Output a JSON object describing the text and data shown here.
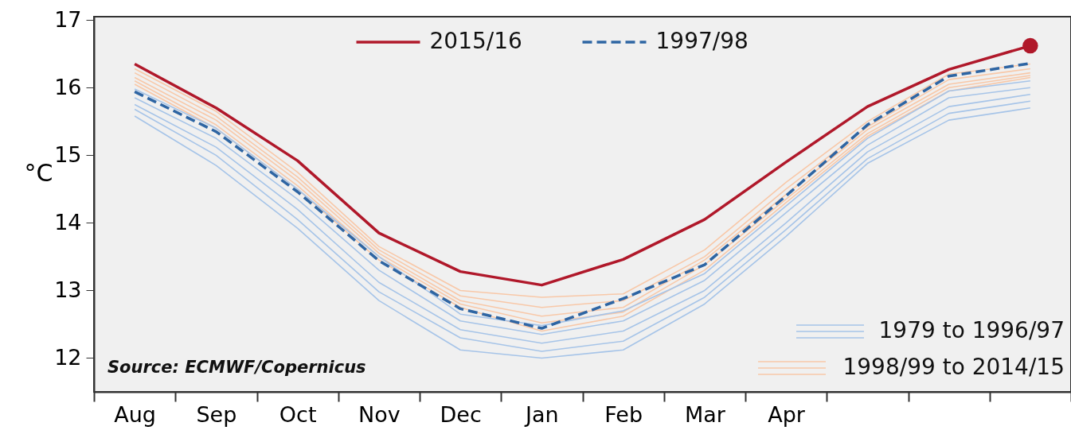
{
  "chart_data": {
    "type": "line",
    "ylabel": "°C",
    "categories": [
      "Aug",
      "Sep",
      "Oct",
      "Nov",
      "Dec",
      "Jan",
      "Feb",
      "Mar",
      "Apr",
      null,
      null,
      null
    ],
    "ylim": [
      11.5,
      17.05
    ],
    "yticks": [
      12,
      13,
      14,
      15,
      16,
      17
    ],
    "grid": false,
    "legend": "top",
    "marker": "none",
    "annotations": [
      "Source: ECMWF/Copernicus"
    ],
    "series": [
      {
        "name": "2015/16",
        "color": "#b0182a",
        "line_style": "solid",
        "values": [
          16.35,
          15.7,
          14.92,
          13.85,
          13.28,
          13.08,
          13.46,
          14.05,
          14.9,
          15.72,
          16.27,
          16.62
        ]
      },
      {
        "name": "1997/98",
        "color": "#2e65a3",
        "line_style": "dashed",
        "values": [
          15.94,
          15.35,
          14.46,
          13.44,
          12.73,
          12.44,
          12.88,
          13.38,
          14.4,
          15.45,
          16.17,
          16.36
        ]
      },
      {
        "name": "1979 to 1996/97",
        "color": "#a6c4e8",
        "line_style": "solid",
        "values": [
          15.98,
          15.4,
          14.5,
          13.5,
          12.65,
          12.48,
          12.7,
          13.25,
          14.25,
          15.25,
          15.95,
          16.1
        ]
      },
      {
        "color": "#a6c4e8",
        "line_style": "solid",
        "values": [
          15.85,
          15.25,
          14.35,
          13.3,
          12.55,
          12.35,
          12.55,
          13.15,
          14.15,
          15.15,
          15.85,
          16.0
        ]
      },
      {
        "color": "#a6c4e8",
        "line_style": "solid",
        "values": [
          15.75,
          15.12,
          14.2,
          13.12,
          12.42,
          12.22,
          12.4,
          13.0,
          14.0,
          15.05,
          15.72,
          15.9
        ]
      },
      {
        "color": "#a6c4e8",
        "line_style": "solid",
        "values": [
          15.68,
          15.0,
          14.05,
          12.98,
          12.3,
          12.1,
          12.25,
          12.9,
          13.9,
          14.95,
          15.62,
          15.8
        ]
      },
      {
        "color": "#a6c4e8",
        "line_style": "solid",
        "values": [
          15.58,
          14.85,
          13.92,
          12.85,
          12.12,
          12.0,
          12.12,
          12.8,
          13.8,
          14.88,
          15.52,
          15.7
        ]
      },
      {
        "name": "1998/99 to 2014/15",
        "color": "#f8c8a8",
        "line_style": "solid",
        "values": [
          16.28,
          15.65,
          14.75,
          13.65,
          13.0,
          12.9,
          12.95,
          13.6,
          14.6,
          15.5,
          16.2,
          16.35
        ]
      },
      {
        "color": "#f8c8a8",
        "line_style": "solid",
        "values": [
          16.22,
          15.58,
          14.68,
          13.6,
          12.92,
          12.75,
          12.85,
          13.5,
          14.5,
          15.42,
          16.12,
          16.28
        ]
      },
      {
        "color": "#f8c8a8",
        "line_style": "solid",
        "values": [
          16.15,
          15.52,
          14.62,
          13.55,
          12.85,
          12.62,
          12.75,
          13.45,
          14.42,
          15.38,
          16.05,
          16.22
        ]
      },
      {
        "color": "#f8c8a8",
        "line_style": "solid",
        "values": [
          16.1,
          15.45,
          14.55,
          13.5,
          12.8,
          12.52,
          12.68,
          13.38,
          14.35,
          15.32,
          16.0,
          16.18
        ]
      },
      {
        "color": "#f8c8a8",
        "line_style": "solid",
        "values": [
          16.05,
          15.4,
          14.5,
          13.45,
          12.75,
          12.4,
          12.62,
          13.3,
          14.3,
          15.28,
          15.95,
          16.15
        ]
      },
      {
        "type": "scatter",
        "color": "#b0182a",
        "marker": "circle",
        "values": [
          null,
          null,
          null,
          null,
          null,
          null,
          null,
          null,
          null,
          null,
          null,
          16.62
        ]
      }
    ]
  }
}
